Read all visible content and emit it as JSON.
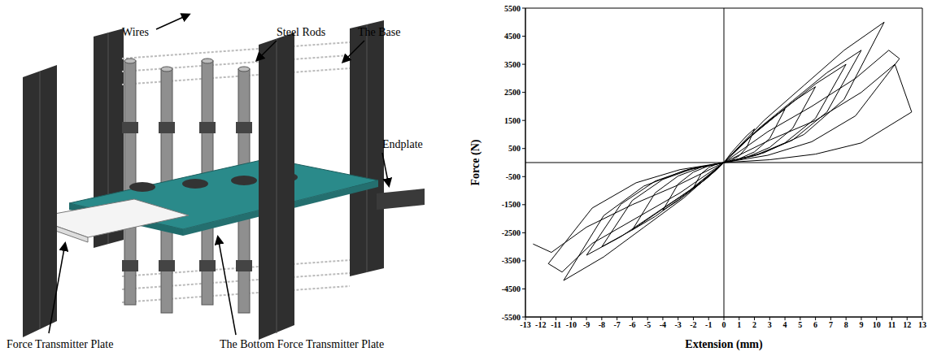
{
  "diagram": {
    "labels": {
      "wires": "Wires",
      "steel_rods": "Steel Rods",
      "base": "The Base",
      "endplate": "Endplate",
      "force_transmitter_plate": "Force Transmitter Plate",
      "bottom_force_transmitter_plate": "The Bottom Force Transmitter Plate"
    }
  },
  "chart_data": {
    "type": "line",
    "x_label": "Extension (mm)",
    "y_label": "Force (N)",
    "color": "#000000",
    "grid": false,
    "x": [
      0,
      0.5,
      1,
      1.5,
      2,
      1.5,
      1,
      0.5,
      0,
      -0.5,
      -1,
      -1.5,
      -2,
      -1.5,
      -1,
      -0.5,
      0,
      1,
      2,
      3,
      4,
      3,
      2,
      1,
      0,
      -1,
      -2,
      -3,
      -4,
      -3,
      -2,
      -1,
      0,
      1.5,
      3,
      4.5,
      6,
      4.5,
      3,
      1.5,
      0,
      -1.5,
      -3,
      -4.5,
      -6,
      -4.5,
      -3,
      -1.5,
      0,
      2,
      4,
      6,
      8,
      6,
      4,
      2,
      0,
      -2,
      -4,
      -6,
      -8,
      -6,
      -4,
      -2,
      0,
      2.25,
      4.5,
      6.75,
      9,
      6.75,
      4.5,
      2.25,
      0,
      -2.25,
      -4.5,
      -6.75,
      -9,
      -6.75,
      -4.5,
      -2.25,
      0,
      2.625,
      5.25,
      7.875,
      10.5,
      7.875,
      5.25,
      2.625,
      0,
      -2.625,
      -5.25,
      -7.875,
      -10.5,
      -7.875,
      -5.25,
      -2.625,
      0,
      2.875,
      5.75,
      8.625,
      10.8,
      11.5,
      8.625,
      5.75,
      2.875,
      0,
      -2.875,
      -5.75,
      -8.625,
      -10.6,
      -11.5,
      -8.625,
      -5.75,
      -2.875,
      0,
      3,
      6,
      9,
      11.2,
      12.3,
      9,
      6,
      3,
      0,
      -3,
      -6,
      -9,
      -11.3,
      -12.5
    ],
    "values": [
      0,
      360,
      660,
      960,
      1200,
      540,
      240,
      85,
      0,
      -270,
      -495,
      -720,
      -900,
      -405,
      -180,
      -63,
      0,
      570,
      1045,
      1520,
      1900,
      855,
      380,
      133,
      0,
      -510,
      -935,
      -1360,
      -1700,
      -765,
      -340,
      -119,
      0,
      810,
      1485,
      2160,
      2700,
      1215,
      540,
      189,
      0,
      -720,
      -1320,
      -1920,
      -2400,
      -1080,
      -480,
      -168,
      0,
      1050,
      1925,
      2800,
      3500,
      1575,
      700,
      245,
      0,
      -900,
      -1650,
      -2400,
      -3000,
      -1350,
      -600,
      -210,
      0,
      1200,
      2200,
      3200,
      4000,
      1800,
      800,
      280,
      0,
      -990,
      -1815,
      -2640,
      -3300,
      -1485,
      -660,
      -231,
      0,
      1500,
      2750,
      4000,
      5000,
      2250,
      1000,
      350,
      0,
      -1260,
      -2310,
      -3360,
      -4200,
      -1890,
      -840,
      -294,
      0,
      1100,
      2000,
      3000,
      4000,
      3700,
      1665,
      740,
      259,
      0,
      -1080,
      -1980,
      -2880,
      -3900,
      -3600,
      -1620,
      -720,
      -252,
      0,
      800,
      1500,
      2500,
      3500,
      1800,
      700,
      300,
      100,
      0,
      -800,
      -1500,
      -2300,
      -3200,
      -2900
    ],
    "xlim": [
      -13,
      13
    ],
    "xticks": [
      -13,
      -12,
      -11,
      -10,
      -9,
      -8,
      -7,
      -6,
      -5,
      -4,
      -3,
      -2,
      -1,
      0,
      1,
      2,
      3,
      4,
      5,
      6,
      7,
      8,
      9,
      10,
      11,
      12,
      13
    ],
    "ylim": [
      -5500,
      5500
    ],
    "yticks": [
      -5500,
      -4500,
      -3500,
      -2500,
      -1500,
      -500,
      500,
      1500,
      2500,
      3500,
      4500,
      5500
    ]
  }
}
